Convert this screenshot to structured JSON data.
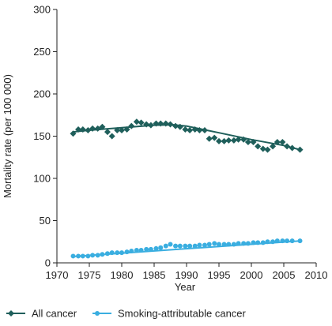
{
  "chart_data": {
    "type": "scatter",
    "xlabel": "Year",
    "ylabel": "Mortality rate (per 100 000)",
    "xlim": [
      1970,
      2010
    ],
    "ylim": [
      0,
      300
    ],
    "x_ticks": [
      1970,
      1975,
      1980,
      1985,
      1990,
      1995,
      2000,
      2005,
      2010
    ],
    "y_ticks": [
      0,
      50,
      100,
      150,
      200,
      250,
      300
    ],
    "grid": false,
    "legend_position": "bottom",
    "series": [
      {
        "name": "All cancer",
        "marker": "diamond",
        "color": "#1f5f5b",
        "points": [
          [
            1972.5,
            153
          ],
          [
            1973.3,
            158
          ],
          [
            1974.0,
            158
          ],
          [
            1974.8,
            157
          ],
          [
            1975.5,
            159
          ],
          [
            1976.3,
            159
          ],
          [
            1977.0,
            161
          ],
          [
            1977.8,
            155
          ],
          [
            1978.5,
            150
          ],
          [
            1979.3,
            157
          ],
          [
            1980.0,
            157
          ],
          [
            1980.8,
            158
          ],
          [
            1981.5,
            162
          ],
          [
            1982.3,
            167
          ],
          [
            1983.0,
            166
          ],
          [
            1983.8,
            164
          ],
          [
            1984.5,
            163
          ],
          [
            1985.3,
            165
          ],
          [
            1986.0,
            165
          ],
          [
            1986.8,
            165
          ],
          [
            1987.5,
            164
          ],
          [
            1988.3,
            162
          ],
          [
            1989.0,
            161
          ],
          [
            1989.8,
            158
          ],
          [
            1990.5,
            157
          ],
          [
            1991.3,
            158
          ],
          [
            1992.0,
            157
          ],
          [
            1992.8,
            157
          ],
          [
            1993.5,
            147
          ],
          [
            1994.3,
            148
          ],
          [
            1995.0,
            144
          ],
          [
            1995.8,
            144
          ],
          [
            1996.5,
            145
          ],
          [
            1997.3,
            145
          ],
          [
            1998.0,
            146
          ],
          [
            1998.8,
            146
          ],
          [
            1999.5,
            143
          ],
          [
            2000.3,
            143
          ],
          [
            2001.0,
            138
          ],
          [
            2001.8,
            135
          ],
          [
            2002.5,
            134
          ],
          [
            2003.3,
            138
          ],
          [
            2004.0,
            143
          ],
          [
            2004.8,
            143
          ],
          [
            2005.5,
            138
          ],
          [
            2006.3,
            136
          ],
          [
            2007.5,
            134
          ]
        ],
        "trend": [
          [
            1972.5,
            155
          ],
          [
            1975,
            157
          ],
          [
            1980,
            160
          ],
          [
            1985,
            163
          ],
          [
            1988,
            163.5
          ],
          [
            1990,
            162
          ],
          [
            1995,
            154
          ],
          [
            2000,
            146
          ],
          [
            2005,
            139
          ],
          [
            2007.5,
            134
          ]
        ]
      },
      {
        "name": "Smoking-attributable cancer",
        "marker": "circle",
        "color": "#3aaee0",
        "points": [
          [
            1972.5,
            8
          ],
          [
            1973.3,
            8
          ],
          [
            1974.0,
            8
          ],
          [
            1974.8,
            8
          ],
          [
            1975.5,
            9
          ],
          [
            1976.3,
            9
          ],
          [
            1977.0,
            10
          ],
          [
            1977.8,
            11
          ],
          [
            1978.5,
            12
          ],
          [
            1979.3,
            12
          ],
          [
            1980.0,
            12
          ],
          [
            1980.8,
            13
          ],
          [
            1981.5,
            14
          ],
          [
            1982.3,
            15
          ],
          [
            1983.0,
            15
          ],
          [
            1983.8,
            16
          ],
          [
            1984.5,
            16
          ],
          [
            1985.3,
            17
          ],
          [
            1986.0,
            18
          ],
          [
            1986.8,
            20
          ],
          [
            1987.5,
            22
          ],
          [
            1988.3,
            20
          ],
          [
            1989.0,
            20
          ],
          [
            1989.8,
            20
          ],
          [
            1990.5,
            20
          ],
          [
            1991.3,
            20
          ],
          [
            1992.0,
            21
          ],
          [
            1992.8,
            21
          ],
          [
            1993.5,
            22
          ],
          [
            1994.3,
            23
          ],
          [
            1995.0,
            22
          ],
          [
            1995.8,
            22
          ],
          [
            1996.5,
            22
          ],
          [
            1997.3,
            22
          ],
          [
            1998.0,
            23
          ],
          [
            1998.8,
            23
          ],
          [
            1999.5,
            23
          ],
          [
            2000.3,
            24
          ],
          [
            2001.0,
            24
          ],
          [
            2001.8,
            24
          ],
          [
            2002.5,
            25
          ],
          [
            2003.3,
            25
          ],
          [
            2004.0,
            26
          ],
          [
            2004.8,
            26
          ],
          [
            2005.5,
            26
          ],
          [
            2006.3,
            26
          ],
          [
            2007.5,
            26
          ]
        ],
        "trend": [
          [
            1972.5,
            7.5
          ],
          [
            2007.5,
            26
          ]
        ]
      }
    ]
  }
}
